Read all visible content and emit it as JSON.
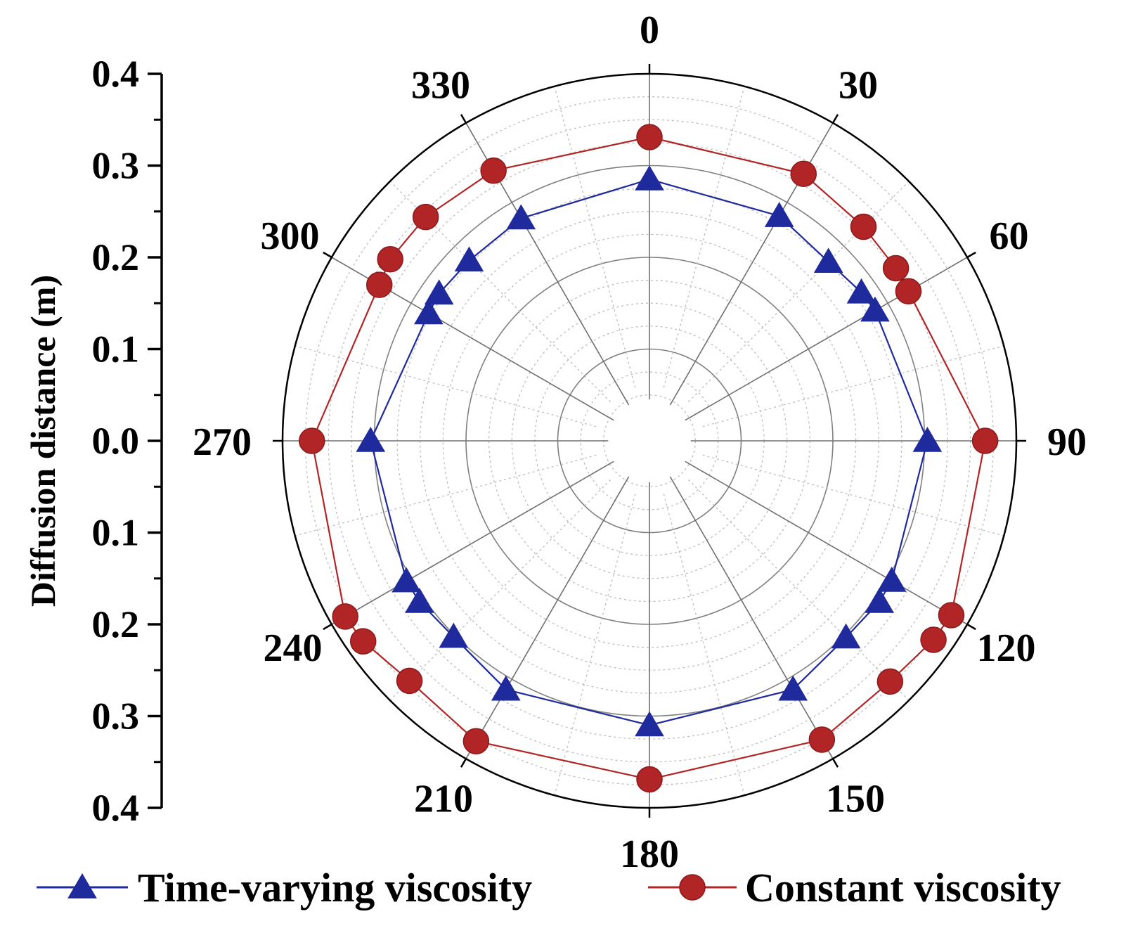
{
  "chart_data": {
    "type": "polar-line",
    "ylabel": "Diffusion distance (m)",
    "radial_range": [
      0,
      0.4
    ],
    "radial_ticks": [
      0.0,
      0.1,
      0.2,
      0.3,
      0.4
    ],
    "radial_tick_labels_upper": [
      "0.4",
      "0.3",
      "0.2",
      "0.1",
      "0.0"
    ],
    "radial_tick_labels_lower": [
      "0.1",
      "0.2",
      "0.3",
      "0.4"
    ],
    "angle_ticks": [
      0,
      30,
      60,
      90,
      120,
      150,
      180,
      210,
      240,
      270,
      300,
      330
    ],
    "angle_labels": [
      "0",
      "30",
      "60",
      "90",
      "120",
      "150",
      "180",
      "210",
      "240",
      "270",
      "300",
      "330"
    ],
    "angle_direction": "clockwise",
    "zero_location": "top",
    "grid": true,
    "legend_position": "bottom",
    "series": [
      {
        "name": "Time-varying viscosity",
        "color": "#1f2a9c",
        "marker": "triangle",
        "points": [
          {
            "angle": 0,
            "r": 0.285
          },
          {
            "angle": 30,
            "r": 0.283
          },
          {
            "angle": 45,
            "r": 0.276
          },
          {
            "angle": 55,
            "r": 0.282
          },
          {
            "angle": 60,
            "r": 0.284
          },
          {
            "angle": 90,
            "r": 0.303
          },
          {
            "angle": 120,
            "r": 0.305
          },
          {
            "angle": 125,
            "r": 0.306
          },
          {
            "angle": 135,
            "r": 0.303
          },
          {
            "angle": 150,
            "r": 0.313
          },
          {
            "angle": 180,
            "r": 0.31
          },
          {
            "angle": 210,
            "r": 0.313
          },
          {
            "angle": 225,
            "r": 0.302
          },
          {
            "angle": 235,
            "r": 0.306
          },
          {
            "angle": 240,
            "r": 0.306
          },
          {
            "angle": 270,
            "r": 0.304
          },
          {
            "angle": 300,
            "r": 0.278
          },
          {
            "angle": 305,
            "r": 0.28
          },
          {
            "angle": 315,
            "r": 0.278
          },
          {
            "angle": 330,
            "r": 0.28
          }
        ]
      },
      {
        "name": "Constant viscosity",
        "color": "#b22526",
        "marker": "circle",
        "points": [
          {
            "angle": 0,
            "r": 0.331
          },
          {
            "angle": 30,
            "r": 0.336
          },
          {
            "angle": 45,
            "r": 0.33
          },
          {
            "angle": 55,
            "r": 0.328
          },
          {
            "angle": 60,
            "r": 0.326
          },
          {
            "angle": 90,
            "r": 0.366
          },
          {
            "angle": 120,
            "r": 0.38
          },
          {
            "angle": 125,
            "r": 0.378
          },
          {
            "angle": 135,
            "r": 0.371
          },
          {
            "angle": 150,
            "r": 0.376
          },
          {
            "angle": 180,
            "r": 0.369
          },
          {
            "angle": 210,
            "r": 0.378
          },
          {
            "angle": 225,
            "r": 0.37
          },
          {
            "angle": 235,
            "r": 0.381
          },
          {
            "angle": 240,
            "r": 0.383
          },
          {
            "angle": 270,
            "r": 0.368
          },
          {
            "angle": 300,
            "r": 0.34
          },
          {
            "angle": 305,
            "r": 0.345
          },
          {
            "angle": 315,
            "r": 0.345
          },
          {
            "angle": 330,
            "r": 0.34
          }
        ]
      }
    ]
  }
}
